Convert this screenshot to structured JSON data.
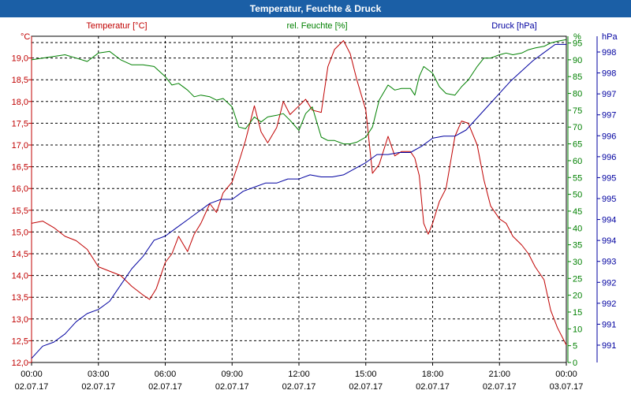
{
  "window": {
    "title": "Temperatur, Feuchte & Druck"
  },
  "colors": {
    "temperature": "#c00000",
    "humidity": "#008000",
    "pressure": "#0000a0",
    "titlebar": "#1b5fa6"
  },
  "chart_data": {
    "type": "line",
    "title": "Temperatur, Feuchte & Druck",
    "x_ticks": [
      {
        "time": "00:00",
        "date": "02.07.17"
      },
      {
        "time": "03:00",
        "date": "02.07.17"
      },
      {
        "time": "06:00",
        "date": "02.07.17"
      },
      {
        "time": "09:00",
        "date": "02.07.17"
      },
      {
        "time": "12:00",
        "date": "02.07.17"
      },
      {
        "time": "15:00",
        "date": "02.07.17"
      },
      {
        "time": "18:00",
        "date": "02.07.17"
      },
      {
        "time": "21:00",
        "date": "02.07.17"
      },
      {
        "time": "00:00",
        "date": "03.07.17"
      }
    ],
    "xlim_hours": [
      0,
      24
    ],
    "axes": {
      "temperature": {
        "label": "Temperatur [°C]",
        "unit": "°C",
        "ylim": [
          12.0,
          19.5
        ],
        "ticks": [
          "12,0",
          "12,5",
          "13,0",
          "13,5",
          "14,0",
          "14,5",
          "15,0",
          "15,5",
          "16,0",
          "16,5",
          "17,0",
          "17,5",
          "18,0",
          "18,5",
          "19,0"
        ]
      },
      "humidity": {
        "label": "rel. Feuchte [%]",
        "unit": "%",
        "ylim": [
          0,
          97
        ],
        "ticks": [
          "0",
          "5",
          "10",
          "15",
          "20",
          "25",
          "30",
          "35",
          "40",
          "45",
          "50",
          "55",
          "60",
          "65",
          "70",
          "75",
          "80",
          "85",
          "90",
          "95"
        ]
      },
      "pressure": {
        "label": "Druck [hPa]",
        "unit": "hPa",
        "ylim": [
          990.6,
          998.6
        ],
        "ticks": [
          "991",
          "991",
          "992",
          "992",
          "993",
          "994",
          "994",
          "995",
          "995",
          "996",
          "996",
          "997",
          "997",
          "998",
          "998"
        ]
      }
    },
    "series": [
      {
        "name": "Temperatur",
        "axis": "temperature",
        "x": [
          0,
          0.5,
          1,
          1.5,
          2,
          2.5,
          3,
          3.5,
          4,
          4.5,
          5,
          5.3,
          5.6,
          6,
          6.3,
          6.6,
          7,
          7.3,
          7.6,
          8,
          8.3,
          8.6,
          9,
          9.3,
          9.6,
          10,
          10.3,
          10.6,
          11,
          11.3,
          11.6,
          12,
          12.3,
          12.6,
          13,
          13.3,
          13.6,
          14,
          14.3,
          14.6,
          15,
          15.3,
          15.6,
          16,
          16.3,
          16.6,
          17,
          17.2,
          17.4,
          17.6,
          17.8,
          18,
          18.3,
          18.6,
          19,
          19.3,
          19.6,
          20,
          20.3,
          20.6,
          21,
          21.3,
          21.6,
          22,
          22.3,
          22.6,
          23,
          23.3,
          23.6,
          24
        ],
        "values": [
          15.2,
          15.25,
          15.1,
          14.9,
          14.8,
          14.6,
          14.2,
          14.1,
          14.0,
          13.75,
          13.55,
          13.45,
          13.7,
          14.3,
          14.5,
          14.9,
          14.55,
          14.95,
          15.2,
          15.65,
          15.45,
          15.9,
          16.15,
          16.6,
          17.1,
          17.9,
          17.3,
          17.05,
          17.4,
          18.0,
          17.7,
          17.9,
          18.05,
          17.8,
          17.75,
          18.8,
          19.2,
          19.4,
          19.1,
          18.5,
          17.8,
          16.35,
          16.55,
          17.2,
          16.75,
          16.85,
          16.85,
          16.7,
          16.3,
          15.2,
          14.95,
          15.2,
          15.7,
          16.0,
          17.2,
          17.55,
          17.5,
          17.0,
          16.2,
          15.6,
          15.3,
          15.2,
          14.9,
          14.7,
          14.5,
          14.2,
          13.9,
          13.2,
          12.8,
          12.4
        ]
      },
      {
        "name": "rel. Feuchte",
        "axis": "humidity",
        "x": [
          0,
          0.5,
          1,
          1.5,
          2,
          2.5,
          3,
          3.5,
          4,
          4.5,
          5,
          5.5,
          6,
          6.3,
          6.6,
          7,
          7.3,
          7.6,
          8,
          8.3,
          8.6,
          9,
          9.3,
          9.6,
          10,
          10.3,
          10.6,
          11,
          11.3,
          11.6,
          12,
          12.3,
          12.6,
          13,
          13.3,
          13.6,
          14,
          14.3,
          14.6,
          15,
          15.3,
          15.6,
          16,
          16.3,
          16.6,
          17,
          17.2,
          17.4,
          17.6,
          18,
          18.3,
          18.6,
          19,
          19.3,
          19.6,
          20,
          20.3,
          20.6,
          21,
          21.3,
          21.6,
          22,
          22.3,
          22.6,
          23,
          23.3,
          23.6,
          24
        ],
        "values": [
          90,
          90.5,
          91,
          91.5,
          90.5,
          89.5,
          92,
          92.5,
          90,
          88.5,
          88.5,
          88,
          85,
          82.5,
          83,
          81,
          79,
          79.5,
          79,
          78,
          78.5,
          76,
          70,
          69.5,
          73,
          71.5,
          73,
          73.5,
          74,
          72,
          69,
          74,
          76,
          67,
          66,
          66,
          65,
          65,
          65.5,
          67,
          70,
          78,
          82.5,
          81,
          81.5,
          81.5,
          79.5,
          85,
          88,
          86,
          82,
          80,
          79.5,
          82,
          84,
          88,
          90.5,
          90.5,
          91.5,
          92,
          91.5,
          92,
          93,
          93.5,
          94,
          95,
          95.5,
          96
        ]
      },
      {
        "name": "Druck",
        "axis": "pressure",
        "x": [
          0,
          0.5,
          1,
          1.5,
          2,
          2.5,
          3,
          3.5,
          4,
          4.5,
          5,
          5.5,
          6,
          6.5,
          7,
          7.5,
          8,
          8.5,
          9,
          9.5,
          10,
          10.5,
          11,
          11.5,
          12,
          12.5,
          13,
          13.5,
          14,
          14.5,
          15,
          15.5,
          16,
          16.5,
          17,
          17.5,
          18,
          18.5,
          19,
          19.5,
          20,
          20.5,
          21,
          21.5,
          22,
          22.5,
          23,
          23.5,
          24
        ],
        "values": [
          990.7,
          991.0,
          991.1,
          991.3,
          991.6,
          991.8,
          991.9,
          992.1,
          992.5,
          992.9,
          993.2,
          993.6,
          993.7,
          993.9,
          994.1,
          994.3,
          994.5,
          994.6,
          994.6,
          994.8,
          994.9,
          995.0,
          995.0,
          995.1,
          995.1,
          995.2,
          995.15,
          995.15,
          995.2,
          995.35,
          995.5,
          995.7,
          995.7,
          995.75,
          995.75,
          995.9,
          996.1,
          996.15,
          996.15,
          996.3,
          996.6,
          996.9,
          997.2,
          997.5,
          997.75,
          998.0,
          998.2,
          998.4,
          998.4
        ]
      }
    ]
  }
}
